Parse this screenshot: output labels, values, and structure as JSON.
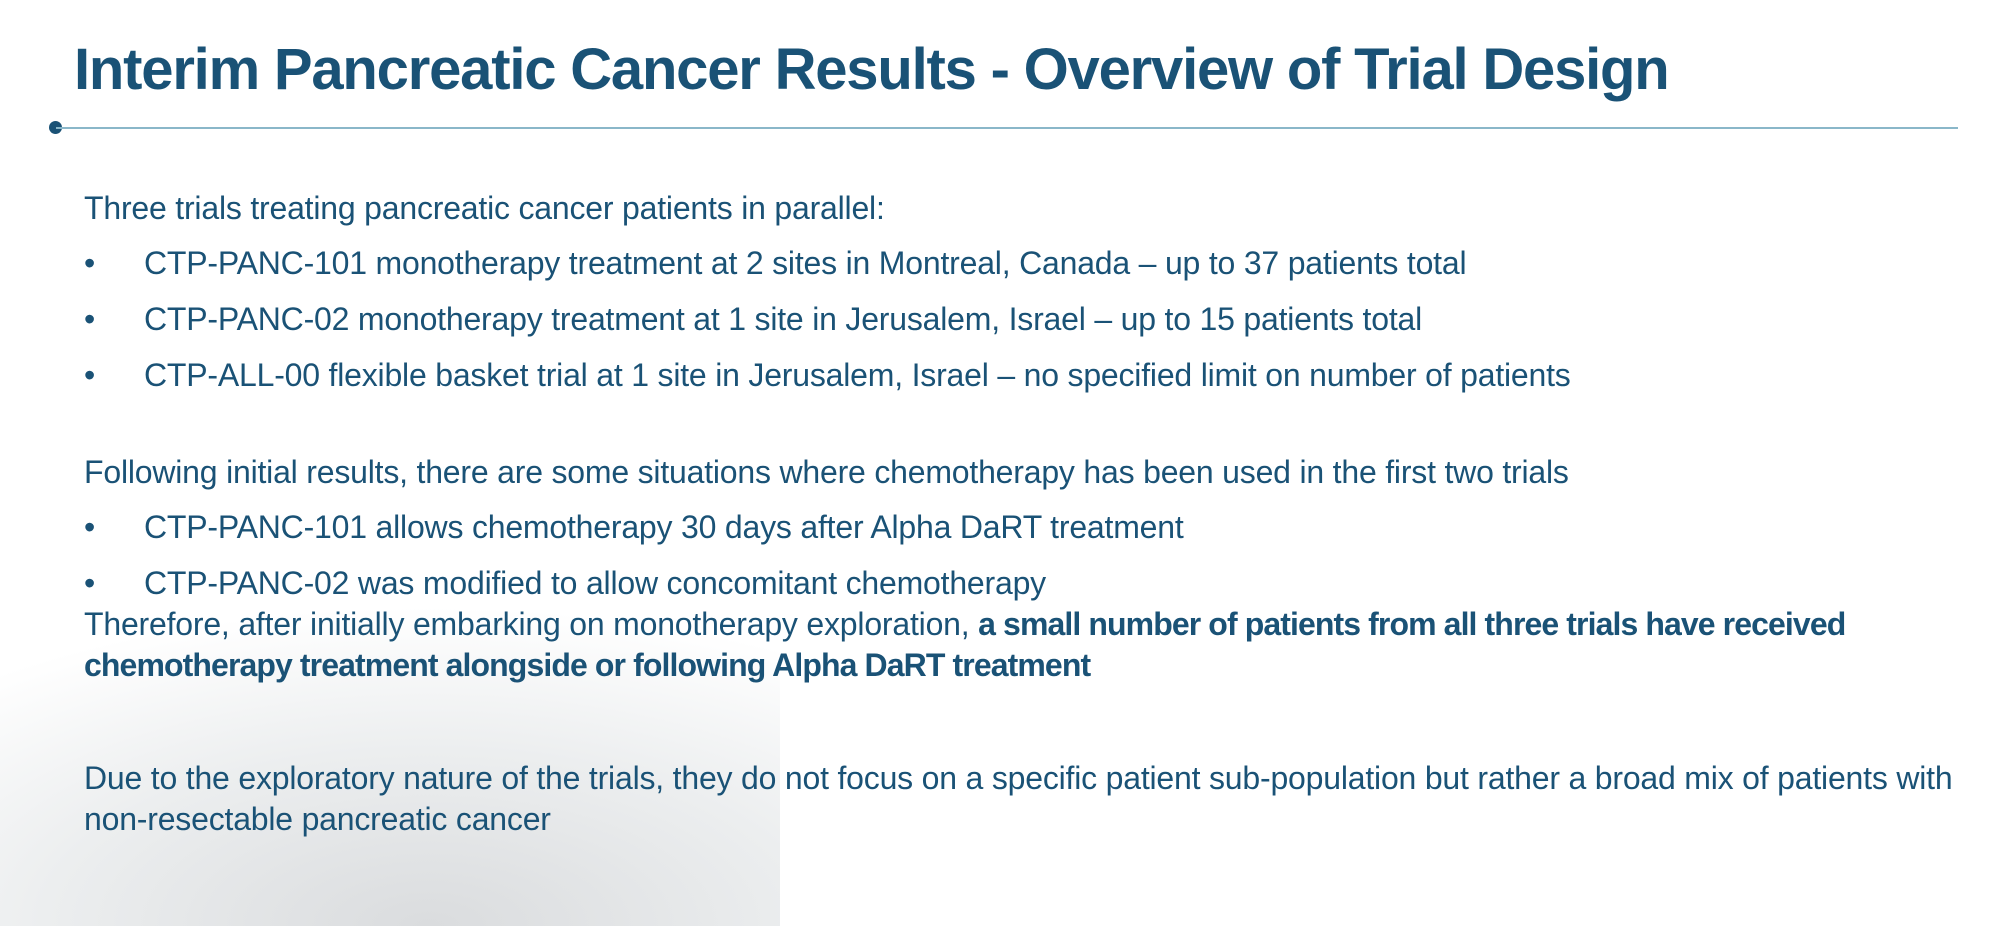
{
  "title": "Interim Pancreatic Cancer Results - Overview of Trial Design",
  "bullet_char": "•",
  "section1": {
    "intro": "Three trials treating pancreatic cancer patients in parallel:",
    "bullets": [
      "CTP-PANC-101 monotherapy treatment at 2 sites in Montreal, Canada – up to 37 patients total",
      "CTP-PANC-02 monotherapy treatment at 1 site in Jerusalem, Israel – up to 15 patients total",
      "CTP-ALL-00 flexible basket trial at 1 site in Jerusalem, Israel – no specified limit on number of patients"
    ]
  },
  "section2": {
    "intro": "Following initial results, there are some situations where chemotherapy has been used in the first two trials",
    "bullets": [
      "CTP-PANC-101 allows chemotherapy 30 days after Alpha DaRT treatment",
      "CTP-PANC-02 was modified to allow concomitant chemotherapy"
    ],
    "conclusion_plain": "Therefore, after initially embarking on monotherapy exploration, ",
    "conclusion_bold": "a small number of patients from all three trials have received chemotherapy treatment alongside or following Alpha DaRT treatment"
  },
  "section3": {
    "text": "Due to the exploratory nature of the trials, they do not focus on a specific patient sub-population but rather a broad mix of patients with non-resectable pancreatic cancer"
  },
  "colors": {
    "primary": "#1a5276",
    "rule": "#8ab7c9",
    "background": "#ffffff"
  }
}
